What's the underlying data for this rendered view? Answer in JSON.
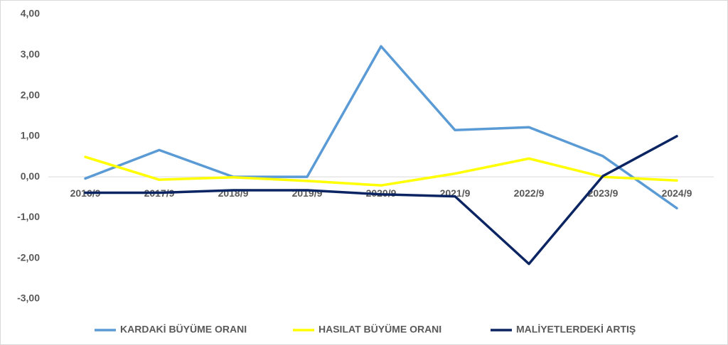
{
  "chart_data": {
    "type": "line",
    "categories": [
      "2016/9",
      "2017/9",
      "2018/9",
      "2019/9",
      "2020/9",
      "2021/9",
      "2022/9",
      "2023/9",
      "2024/9"
    ],
    "series": [
      {
        "name": "KARDAKİ BÜYÜME ORANI",
        "color": "#5b9bd5",
        "values": [
          -0.04,
          0.66,
          0.0,
          0.0,
          3.21,
          1.15,
          1.22,
          0.51,
          -0.77
        ]
      },
      {
        "name": "HASILAT BÜYÜME ORANI",
        "color": "#ffff00",
        "values": [
          0.49,
          -0.07,
          -0.01,
          -0.1,
          -0.21,
          0.08,
          0.45,
          0.0,
          -0.09
        ]
      },
      {
        "name": "MALİYETLERDEKİ ARTIŞ",
        "color": "#0b2462",
        "values": [
          -0.39,
          -0.39,
          -0.33,
          -0.33,
          -0.43,
          -0.48,
          -2.14,
          0.02,
          1.0
        ]
      }
    ],
    "ylim": [
      -3,
      4
    ],
    "yticks": [
      {
        "value": -3,
        "label": "-3,00"
      },
      {
        "value": -2,
        "label": "-2,00"
      },
      {
        "value": -1,
        "label": "-1,00"
      },
      {
        "value": 0,
        "label": "0,00"
      },
      {
        "value": 1,
        "label": "1,00"
      },
      {
        "value": 2,
        "label": "2,00"
      },
      {
        "value": 3,
        "label": "3,00"
      },
      {
        "value": 4,
        "label": "4,00"
      }
    ],
    "grid": false
  }
}
